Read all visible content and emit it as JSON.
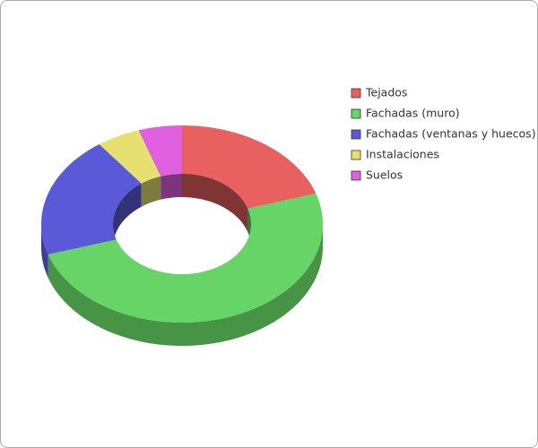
{
  "chart_data": {
    "type": "donut",
    "categories": [
      "Tejados",
      "Fachadas (muro)",
      "Fachadas (ventanas y huecos)",
      "Instalaciones",
      "Suelos"
    ],
    "values": [
      20,
      50,
      20,
      5,
      5
    ],
    "colors": [
      "#e86060",
      "#66d466",
      "#5a5ad8",
      "#e6e070",
      "#e060e0"
    ],
    "legend": "right"
  }
}
